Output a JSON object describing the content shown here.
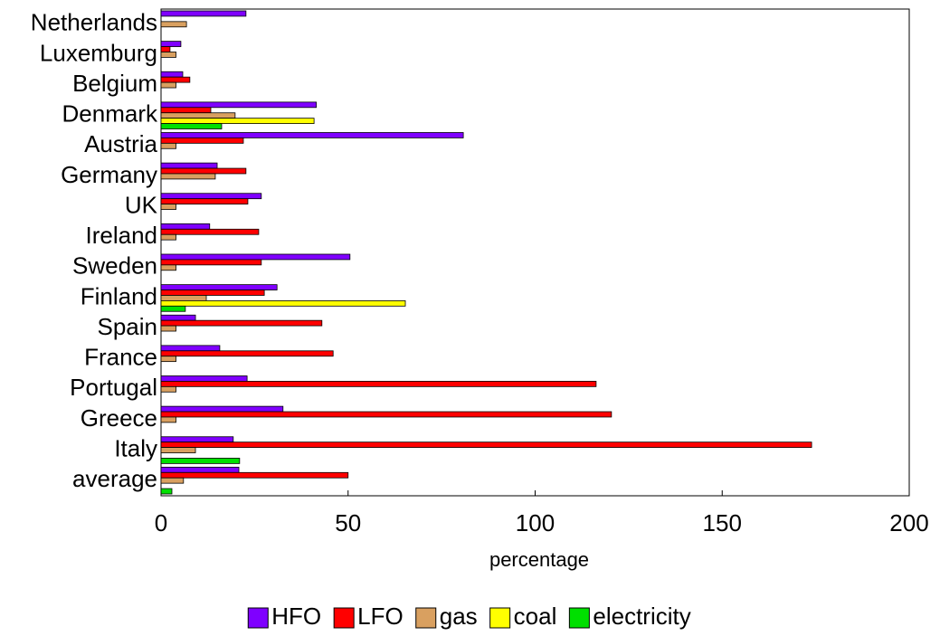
{
  "chart_data": {
    "type": "bar",
    "orientation": "horizontal",
    "x_label": "percentage",
    "categories": [
      "Netherlands",
      "Luxemburg",
      "Belgium",
      "Denmark",
      "Austria",
      "Germany",
      "UK",
      "Ireland",
      "Sweden",
      "Finland",
      "Spain",
      "France",
      "Portugal",
      "Greece",
      "Italy",
      "average"
    ],
    "series": [
      {
        "name": "HFO",
        "color": "#7f00ff",
        "values": [
          22.7,
          5.3,
          5.8,
          41.5,
          80.8,
          15,
          26.8,
          13,
          50.5,
          31,
          9.2,
          15.7,
          23,
          32.6,
          19.3,
          20.8
        ]
      },
      {
        "name": "LFO",
        "color": "#ff0000",
        "values": [
          null,
          2.4,
          7.7,
          13.3,
          22,
          22.7,
          23.2,
          26.1,
          26.8,
          27.6,
          43,
          46,
          116.3,
          120.4,
          173.9,
          50
        ]
      },
      {
        "name": "gas",
        "color": "#d9a060",
        "values": [
          6.8,
          4,
          4,
          19.8,
          4,
          14.5,
          4,
          4,
          4,
          12.1,
          4,
          4,
          4,
          4,
          9.2,
          6
        ]
      },
      {
        "name": "coal",
        "color": "#ffff00",
        "values": [
          null,
          null,
          null,
          40.9,
          null,
          null,
          null,
          null,
          null,
          65.3,
          null,
          null,
          null,
          null,
          null,
          null
        ]
      },
      {
        "name": "electricity",
        "color": "#00e000",
        "values": [
          null,
          null,
          null,
          16.2,
          null,
          null,
          null,
          null,
          null,
          6.5,
          null,
          null,
          null,
          null,
          21,
          2.9
        ]
      }
    ],
    "xlim": [
      0,
      200
    ],
    "xticks": [
      0,
      50,
      100,
      150,
      200
    ],
    "legend": "bottom"
  }
}
